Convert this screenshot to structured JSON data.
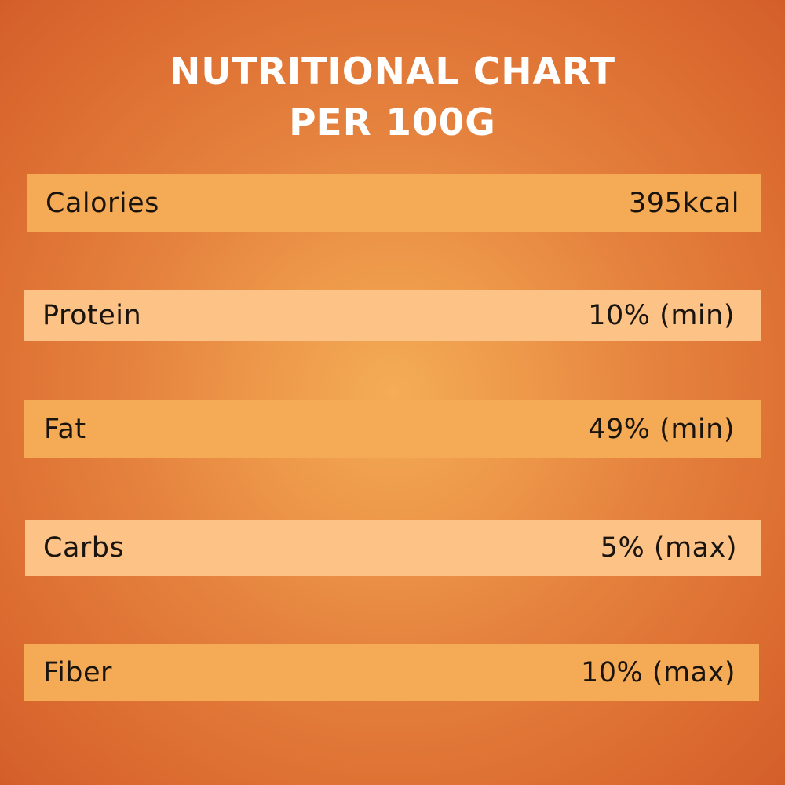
{
  "title": {
    "line1": "NUTRITIONAL CHART",
    "line2": "PER 100G"
  },
  "rows": [
    {
      "label": "Calories",
      "value": "395kcal"
    },
    {
      "label": "Protein",
      "value": "10% (min)"
    },
    {
      "label": "Fat",
      "value": "49% (min)"
    },
    {
      "label": "Carbs",
      "value": "5% (max)"
    },
    {
      "label": "Fiber",
      "value": "10% (max)"
    }
  ],
  "colors": {
    "background_center": "#f4ac55",
    "background_edge": "#d45e2a",
    "row_dark": "#f5aa55",
    "row_light": "#fdc286",
    "title_text": "#ffffff",
    "row_text": "#1a140f"
  }
}
